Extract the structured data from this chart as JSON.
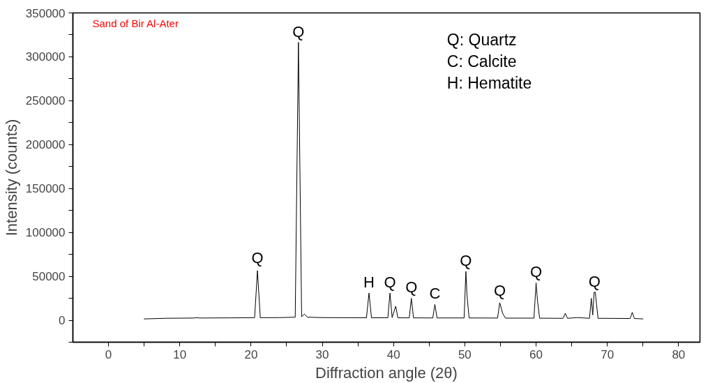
{
  "chart_data": {
    "type": "line",
    "xlabel": "Diffraction angle (2θ)",
    "ylabel": "Intensity (counts)",
    "xlim": [
      -5,
      83
    ],
    "ylim": [
      -25000,
      350000
    ],
    "xticks": [
      0,
      {
        "value": 5,
        "label": null
      },
      10,
      {
        "value": 15,
        "label": null
      },
      20,
      {
        "value": 25,
        "label": null
      },
      30,
      {
        "value": 35,
        "label": null
      },
      40,
      {
        "value": 45,
        "label": null
      },
      50,
      {
        "value": 55,
        "label": null
      },
      60,
      {
        "value": 65,
        "label": null
      },
      70,
      {
        "value": 75,
        "label": null
      },
      80
    ],
    "yticks": [
      {
        "value": -25000,
        "label": null
      },
      0,
      {
        "value": 25000,
        "label": null
      },
      50000,
      {
        "value": 75000,
        "label": null
      },
      100000,
      {
        "value": 125000,
        "label": null
      },
      150000,
      {
        "value": 175000,
        "label": null
      },
      200000,
      {
        "value": 225000,
        "label": null
      },
      250000,
      {
        "value": 275000,
        "label": null
      },
      300000,
      {
        "value": 325000,
        "label": null
      },
      350000
    ],
    "grid": false,
    "marker": "none",
    "line_style": "solid",
    "series": [
      {
        "color": "#000000",
        "x": [
          5,
          8,
          12,
          12.4,
          12.8,
          17,
          20.5,
          20.9,
          21.3,
          24,
          25,
          26.2,
          26.65,
          27.1,
          27.5,
          27.9,
          30,
          36.2,
          36.55,
          36.9,
          39.2,
          39.5,
          39.8,
          40.3,
          40.6,
          42.2,
          42.5,
          42.8,
          45.5,
          45.8,
          46.1,
          49.9,
          50.15,
          50.3,
          50.6,
          54.6,
          54.9,
          55.3,
          55.7,
          59.7,
          60.0,
          60.2,
          60.5,
          63.8,
          64.1,
          64.4,
          65.8,
          67.5,
          67.75,
          67.95,
          68.15,
          68.3,
          68.7,
          73.2,
          73.5,
          73.8,
          75
        ],
        "values": [
          1500,
          2200,
          2500,
          3000,
          2500,
          2700,
          2900,
          56500,
          2900,
          3000,
          3200,
          3500,
          316500,
          4000,
          7000,
          3500,
          3000,
          2800,
          31000,
          2800,
          2800,
          31000,
          3000,
          16000,
          2800,
          2700,
          25000,
          2700,
          2600,
          18000,
          2600,
          2600,
          55500,
          29000,
          2600,
          2500,
          20000,
          8000,
          2400,
          2400,
          42500,
          22000,
          2300,
          2200,
          8000,
          2200,
          3000,
          2200,
          25000,
          6000,
          32000,
          32000,
          2200,
          2000,
          9000,
          2000,
          1500
        ]
      }
    ],
    "annotations": [
      "Sand of Bir Al-Ater",
      "Q: Quartz\nC: Calcite\nH: Hematite",
      {
        "text": "Q",
        "x": 20.9,
        "y": 61000
      },
      {
        "text": "Q",
        "x": 26.65,
        "y": 319000
      },
      {
        "text": "H",
        "x": 36.55,
        "y": 33500
      },
      {
        "text": "Q",
        "x": 39.5,
        "y": 33500
      },
      {
        "text": "Q",
        "x": 42.5,
        "y": 27500
      },
      {
        "text": "C",
        "x": 45.8,
        "y": 20500
      },
      {
        "text": "Q",
        "x": 50.15,
        "y": 58000
      },
      {
        "text": "Q",
        "x": 54.9,
        "y": 24000
      },
      {
        "text": "Q",
        "x": 60.0,
        "y": 45000
      },
      {
        "text": "Q",
        "x": 68.2,
        "y": 34500
      }
    ]
  }
}
